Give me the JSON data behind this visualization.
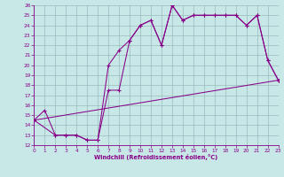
{
  "xlabel": "Windchill (Refroidissement éolien,°C)",
  "bg_color": "#c8e8e8",
  "line_color": "#880088",
  "grid_color": "#99bbbb",
  "xlim": [
    0,
    23
  ],
  "ylim": [
    12,
    26
  ],
  "xticks": [
    0,
    1,
    2,
    3,
    4,
    5,
    6,
    7,
    8,
    9,
    10,
    11,
    12,
    13,
    14,
    15,
    16,
    17,
    18,
    19,
    20,
    21,
    22,
    23
  ],
  "yticks": [
    12,
    13,
    14,
    15,
    16,
    17,
    18,
    19,
    20,
    21,
    22,
    23,
    24,
    25,
    26
  ],
  "line1_x": [
    0,
    1,
    2,
    3,
    4,
    5,
    6,
    7,
    8,
    9,
    10,
    11,
    12,
    13,
    14,
    15,
    16,
    17,
    18,
    19,
    20,
    21,
    22,
    23
  ],
  "line1_y": [
    14.5,
    15.5,
    13.0,
    13.0,
    13.0,
    12.5,
    12.5,
    20.0,
    21.5,
    22.5,
    24.0,
    24.5,
    22.0,
    26.0,
    24.5,
    25.0,
    25.0,
    25.0,
    25.0,
    25.0,
    24.0,
    25.0,
    20.5,
    18.5
  ],
  "line2_x": [
    0,
    2,
    3,
    4,
    5,
    6,
    7,
    8,
    9,
    10,
    11,
    12,
    13,
    14,
    15,
    16,
    17,
    18,
    19,
    20,
    21,
    22,
    23
  ],
  "line2_y": [
    14.5,
    13.0,
    13.0,
    13.0,
    12.5,
    12.5,
    17.5,
    17.5,
    22.5,
    24.0,
    24.5,
    22.0,
    26.0,
    24.5,
    25.0,
    25.0,
    25.0,
    25.0,
    25.0,
    24.0,
    25.0,
    20.5,
    18.5
  ],
  "line3_x": [
    0,
    23
  ],
  "line3_y": [
    14.5,
    18.5
  ]
}
